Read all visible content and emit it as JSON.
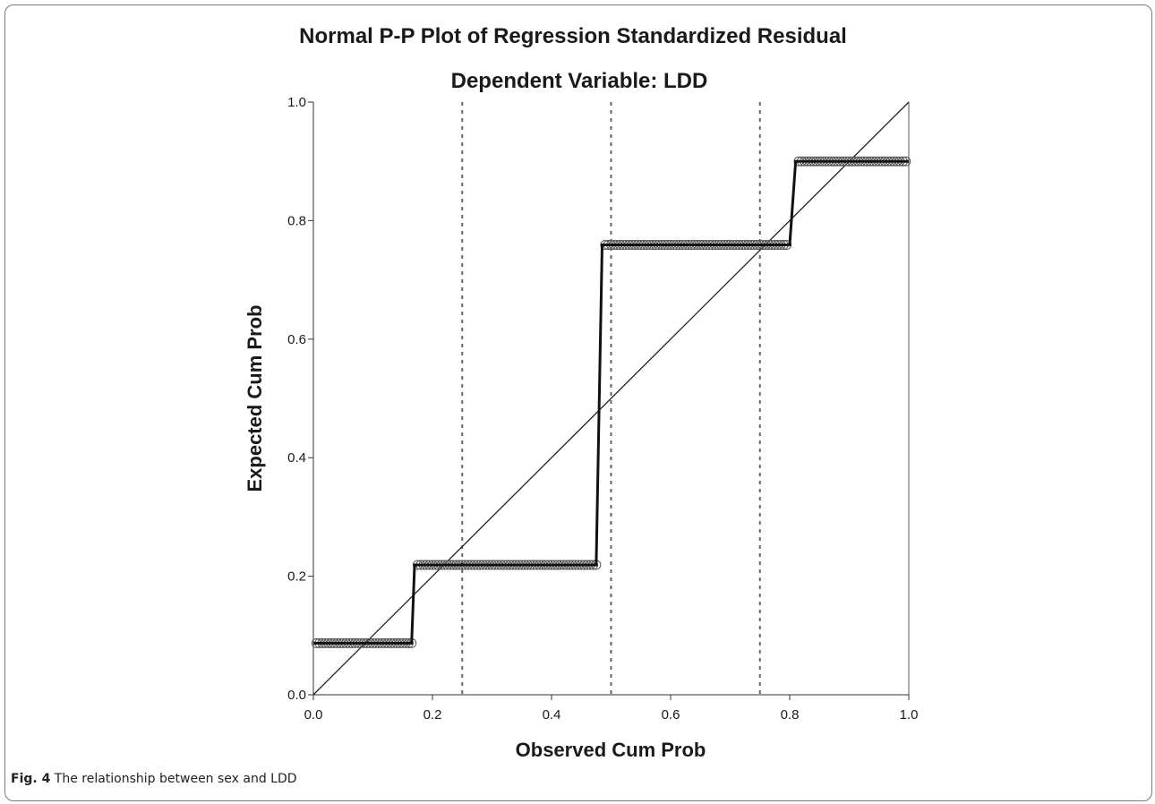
{
  "figure": {
    "caption_label": "Fig. 4",
    "caption_text": "The relationship between sex and LDD"
  },
  "chart_data": {
    "type": "line",
    "title": "Normal P-P Plot of Regression Standardized Residual",
    "subtitle": "Dependent Variable: LDD",
    "xlabel": "Observed Cum Prob",
    "ylabel": "Expected Cum Prob",
    "xlim": [
      0.0,
      1.0
    ],
    "ylim": [
      0.0,
      1.0
    ],
    "x_ticks": [
      "0.0",
      "0.2",
      "0.4",
      "0.6",
      "0.8",
      "1.0"
    ],
    "y_ticks": [
      "0.0",
      "0.2",
      "0.4",
      "0.6",
      "0.8",
      "1.0"
    ],
    "x_tick_values": [
      0.0,
      0.2,
      0.4,
      0.6,
      0.8,
      1.0
    ],
    "y_tick_values": [
      0.0,
      0.2,
      0.4,
      0.6,
      0.8,
      1.0
    ],
    "reference_line": {
      "from": [
        0,
        0
      ],
      "to": [
        1,
        1
      ]
    },
    "vertical_reference_lines": [
      0.25,
      0.5,
      0.75
    ],
    "grid": false,
    "points": {
      "x": [
        0.005,
        0.01,
        0.015,
        0.02,
        0.025,
        0.03,
        0.035,
        0.04,
        0.045,
        0.05,
        0.055,
        0.06,
        0.065,
        0.07,
        0.075,
        0.08,
        0.085,
        0.09,
        0.095,
        0.1,
        0.105,
        0.11,
        0.115,
        0.12,
        0.125,
        0.13,
        0.135,
        0.14,
        0.145,
        0.15,
        0.155,
        0.16,
        0.165,
        0.175,
        0.18,
        0.185,
        0.19,
        0.195,
        0.2,
        0.205,
        0.21,
        0.215,
        0.22,
        0.225,
        0.23,
        0.235,
        0.24,
        0.245,
        0.25,
        0.255,
        0.26,
        0.265,
        0.27,
        0.275,
        0.28,
        0.285,
        0.29,
        0.295,
        0.3,
        0.305,
        0.31,
        0.315,
        0.32,
        0.325,
        0.33,
        0.335,
        0.34,
        0.345,
        0.35,
        0.355,
        0.36,
        0.365,
        0.37,
        0.375,
        0.38,
        0.385,
        0.39,
        0.395,
        0.4,
        0.405,
        0.41,
        0.415,
        0.42,
        0.425,
        0.43,
        0.435,
        0.44,
        0.445,
        0.45,
        0.455,
        0.46,
        0.465,
        0.47,
        0.475,
        0.49,
        0.495,
        0.5,
        0.505,
        0.51,
        0.515,
        0.52,
        0.525,
        0.53,
        0.535,
        0.54,
        0.545,
        0.55,
        0.555,
        0.56,
        0.565,
        0.57,
        0.575,
        0.58,
        0.585,
        0.59,
        0.595,
        0.6,
        0.605,
        0.61,
        0.615,
        0.62,
        0.625,
        0.63,
        0.635,
        0.64,
        0.645,
        0.65,
        0.655,
        0.66,
        0.665,
        0.67,
        0.675,
        0.68,
        0.685,
        0.69,
        0.695,
        0.7,
        0.705,
        0.71,
        0.715,
        0.72,
        0.725,
        0.73,
        0.735,
        0.74,
        0.745,
        0.75,
        0.755,
        0.76,
        0.765,
        0.77,
        0.775,
        0.78,
        0.785,
        0.79,
        0.795,
        0.815,
        0.82,
        0.825,
        0.83,
        0.835,
        0.84,
        0.845,
        0.85,
        0.855,
        0.86,
        0.865,
        0.87,
        0.875,
        0.88,
        0.885,
        0.89,
        0.895,
        0.9,
        0.905,
        0.91,
        0.915,
        0.92,
        0.925,
        0.93,
        0.935,
        0.94,
        0.945,
        0.95,
        0.955,
        0.96,
        0.965,
        0.97,
        0.975,
        0.98,
        0.985,
        0.99,
        0.995
      ],
      "y": [
        0.087,
        0.087,
        0.087,
        0.087,
        0.087,
        0.087,
        0.087,
        0.087,
        0.087,
        0.087,
        0.087,
        0.087,
        0.087,
        0.087,
        0.087,
        0.087,
        0.087,
        0.087,
        0.087,
        0.087,
        0.087,
        0.087,
        0.087,
        0.087,
        0.087,
        0.087,
        0.087,
        0.087,
        0.087,
        0.087,
        0.087,
        0.087,
        0.087,
        0.219,
        0.219,
        0.219,
        0.219,
        0.219,
        0.219,
        0.219,
        0.219,
        0.219,
        0.219,
        0.219,
        0.219,
        0.219,
        0.219,
        0.219,
        0.219,
        0.219,
        0.219,
        0.219,
        0.219,
        0.219,
        0.219,
        0.219,
        0.219,
        0.219,
        0.219,
        0.219,
        0.219,
        0.219,
        0.219,
        0.219,
        0.219,
        0.219,
        0.219,
        0.219,
        0.219,
        0.219,
        0.219,
        0.219,
        0.219,
        0.219,
        0.219,
        0.219,
        0.219,
        0.219,
        0.219,
        0.219,
        0.219,
        0.219,
        0.219,
        0.219,
        0.219,
        0.219,
        0.219,
        0.219,
        0.219,
        0.219,
        0.219,
        0.219,
        0.219,
        0.219,
        0.759,
        0.759,
        0.759,
        0.759,
        0.759,
        0.759,
        0.759,
        0.759,
        0.759,
        0.759,
        0.759,
        0.759,
        0.759,
        0.759,
        0.759,
        0.759,
        0.759,
        0.759,
        0.759,
        0.759,
        0.759,
        0.759,
        0.759,
        0.759,
        0.759,
        0.759,
        0.759,
        0.759,
        0.759,
        0.759,
        0.759,
        0.759,
        0.759,
        0.759,
        0.759,
        0.759,
        0.759,
        0.759,
        0.759,
        0.759,
        0.759,
        0.759,
        0.759,
        0.759,
        0.759,
        0.759,
        0.759,
        0.759,
        0.759,
        0.759,
        0.759,
        0.759,
        0.759,
        0.759,
        0.759,
        0.759,
        0.759,
        0.759,
        0.759,
        0.759,
        0.759,
        0.759,
        0.9,
        0.9,
        0.9,
        0.9,
        0.9,
        0.9,
        0.9,
        0.9,
        0.9,
        0.9,
        0.9,
        0.9,
        0.9,
        0.9,
        0.9,
        0.9,
        0.9,
        0.9,
        0.9,
        0.9,
        0.9,
        0.9,
        0.9,
        0.9,
        0.9,
        0.9,
        0.9,
        0.9,
        0.9,
        0.9,
        0.9,
        0.9,
        0.9,
        0.9,
        0.9,
        0.9,
        0.9
      ]
    },
    "step_line": {
      "x": [
        0.0,
        0.165,
        0.17,
        0.475,
        0.485,
        0.8,
        0.81,
        1.0
      ],
      "y": [
        0.087,
        0.087,
        0.219,
        0.219,
        0.759,
        0.759,
        0.9,
        0.9
      ]
    }
  }
}
